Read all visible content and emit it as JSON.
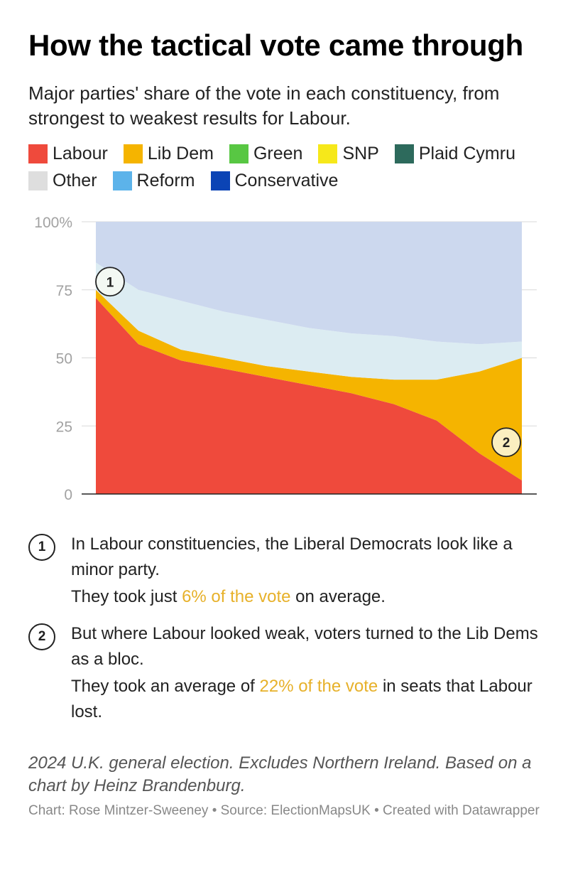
{
  "title": "How the tactical vote came through",
  "subtitle": "Major parties' share of the vote in each constituency, from strongest to weakest results for Labour.",
  "legend": [
    {
      "label": "Labour",
      "color": "#ef4a3c"
    },
    {
      "label": "Lib Dem",
      "color": "#f5b400"
    },
    {
      "label": "Green",
      "color": "#58c743"
    },
    {
      "label": "SNP",
      "color": "#f6e81a"
    },
    {
      "label": "Plaid Cymru",
      "color": "#2d6a5c"
    },
    {
      "label": "Other",
      "color": "#dedede"
    },
    {
      "label": "Reform",
      "color": "#5cb3ea"
    },
    {
      "label": "Conservative",
      "color": "#0b44b5"
    }
  ],
  "chart_data": {
    "type": "area",
    "stacked": true,
    "x_description": "constituencies sorted by Labour vote share",
    "y_unit": "%",
    "ylim": [
      0,
      100
    ],
    "y_ticks": [
      0,
      25,
      50,
      75,
      100
    ],
    "y_tick_labels": [
      "0",
      "25",
      "50",
      "75",
      "100%"
    ],
    "grid": true,
    "x": [
      0,
      10,
      20,
      30,
      40,
      50,
      60,
      70,
      80,
      90,
      100
    ],
    "series": [
      {
        "name": "Labour",
        "values": [
          72,
          55,
          49,
          46,
          43,
          40,
          37,
          33,
          27,
          15,
          5
        ]
      },
      {
        "name": "Lib Dem",
        "values": [
          3,
          5,
          4,
          4,
          4,
          5,
          6,
          9,
          15,
          30,
          45
        ]
      },
      {
        "name": "Other",
        "values": [
          10,
          15,
          18,
          17,
          17,
          16,
          16,
          16,
          14,
          10,
          6
        ]
      },
      {
        "name": "Conservative",
        "values": [
          15,
          25,
          29,
          33,
          36,
          39,
          41,
          42,
          44,
          45,
          44
        ]
      }
    ],
    "annotations": [
      {
        "label": "1",
        "x": 3,
        "y": 78
      },
      {
        "label": "2",
        "x": 96,
        "y": 19
      }
    ]
  },
  "notes": [
    {
      "marker": "1",
      "line1": "In Labour constituencies, the Liberal Democrats look like a minor party.",
      "line2_pre": "They took just ",
      "line2_hl": "6% of the vote",
      "line2_post": " on average."
    },
    {
      "marker": "2",
      "line1": "But where Labour looked weak, voters turned to the Lib Dems as a bloc.",
      "line2_pre": "They took an average of ",
      "line2_hl": "22% of the vote",
      "line2_post": " in seats that Labour lost."
    }
  ],
  "footnote": "2024 U.K. general election. Excludes Northern Ireland. Based on a chart by Heinz Brandenburg.",
  "credit": "Chart: Rose Mintzer-Sweeney • Source: ElectionMapsUK • Created with Datawrapper"
}
